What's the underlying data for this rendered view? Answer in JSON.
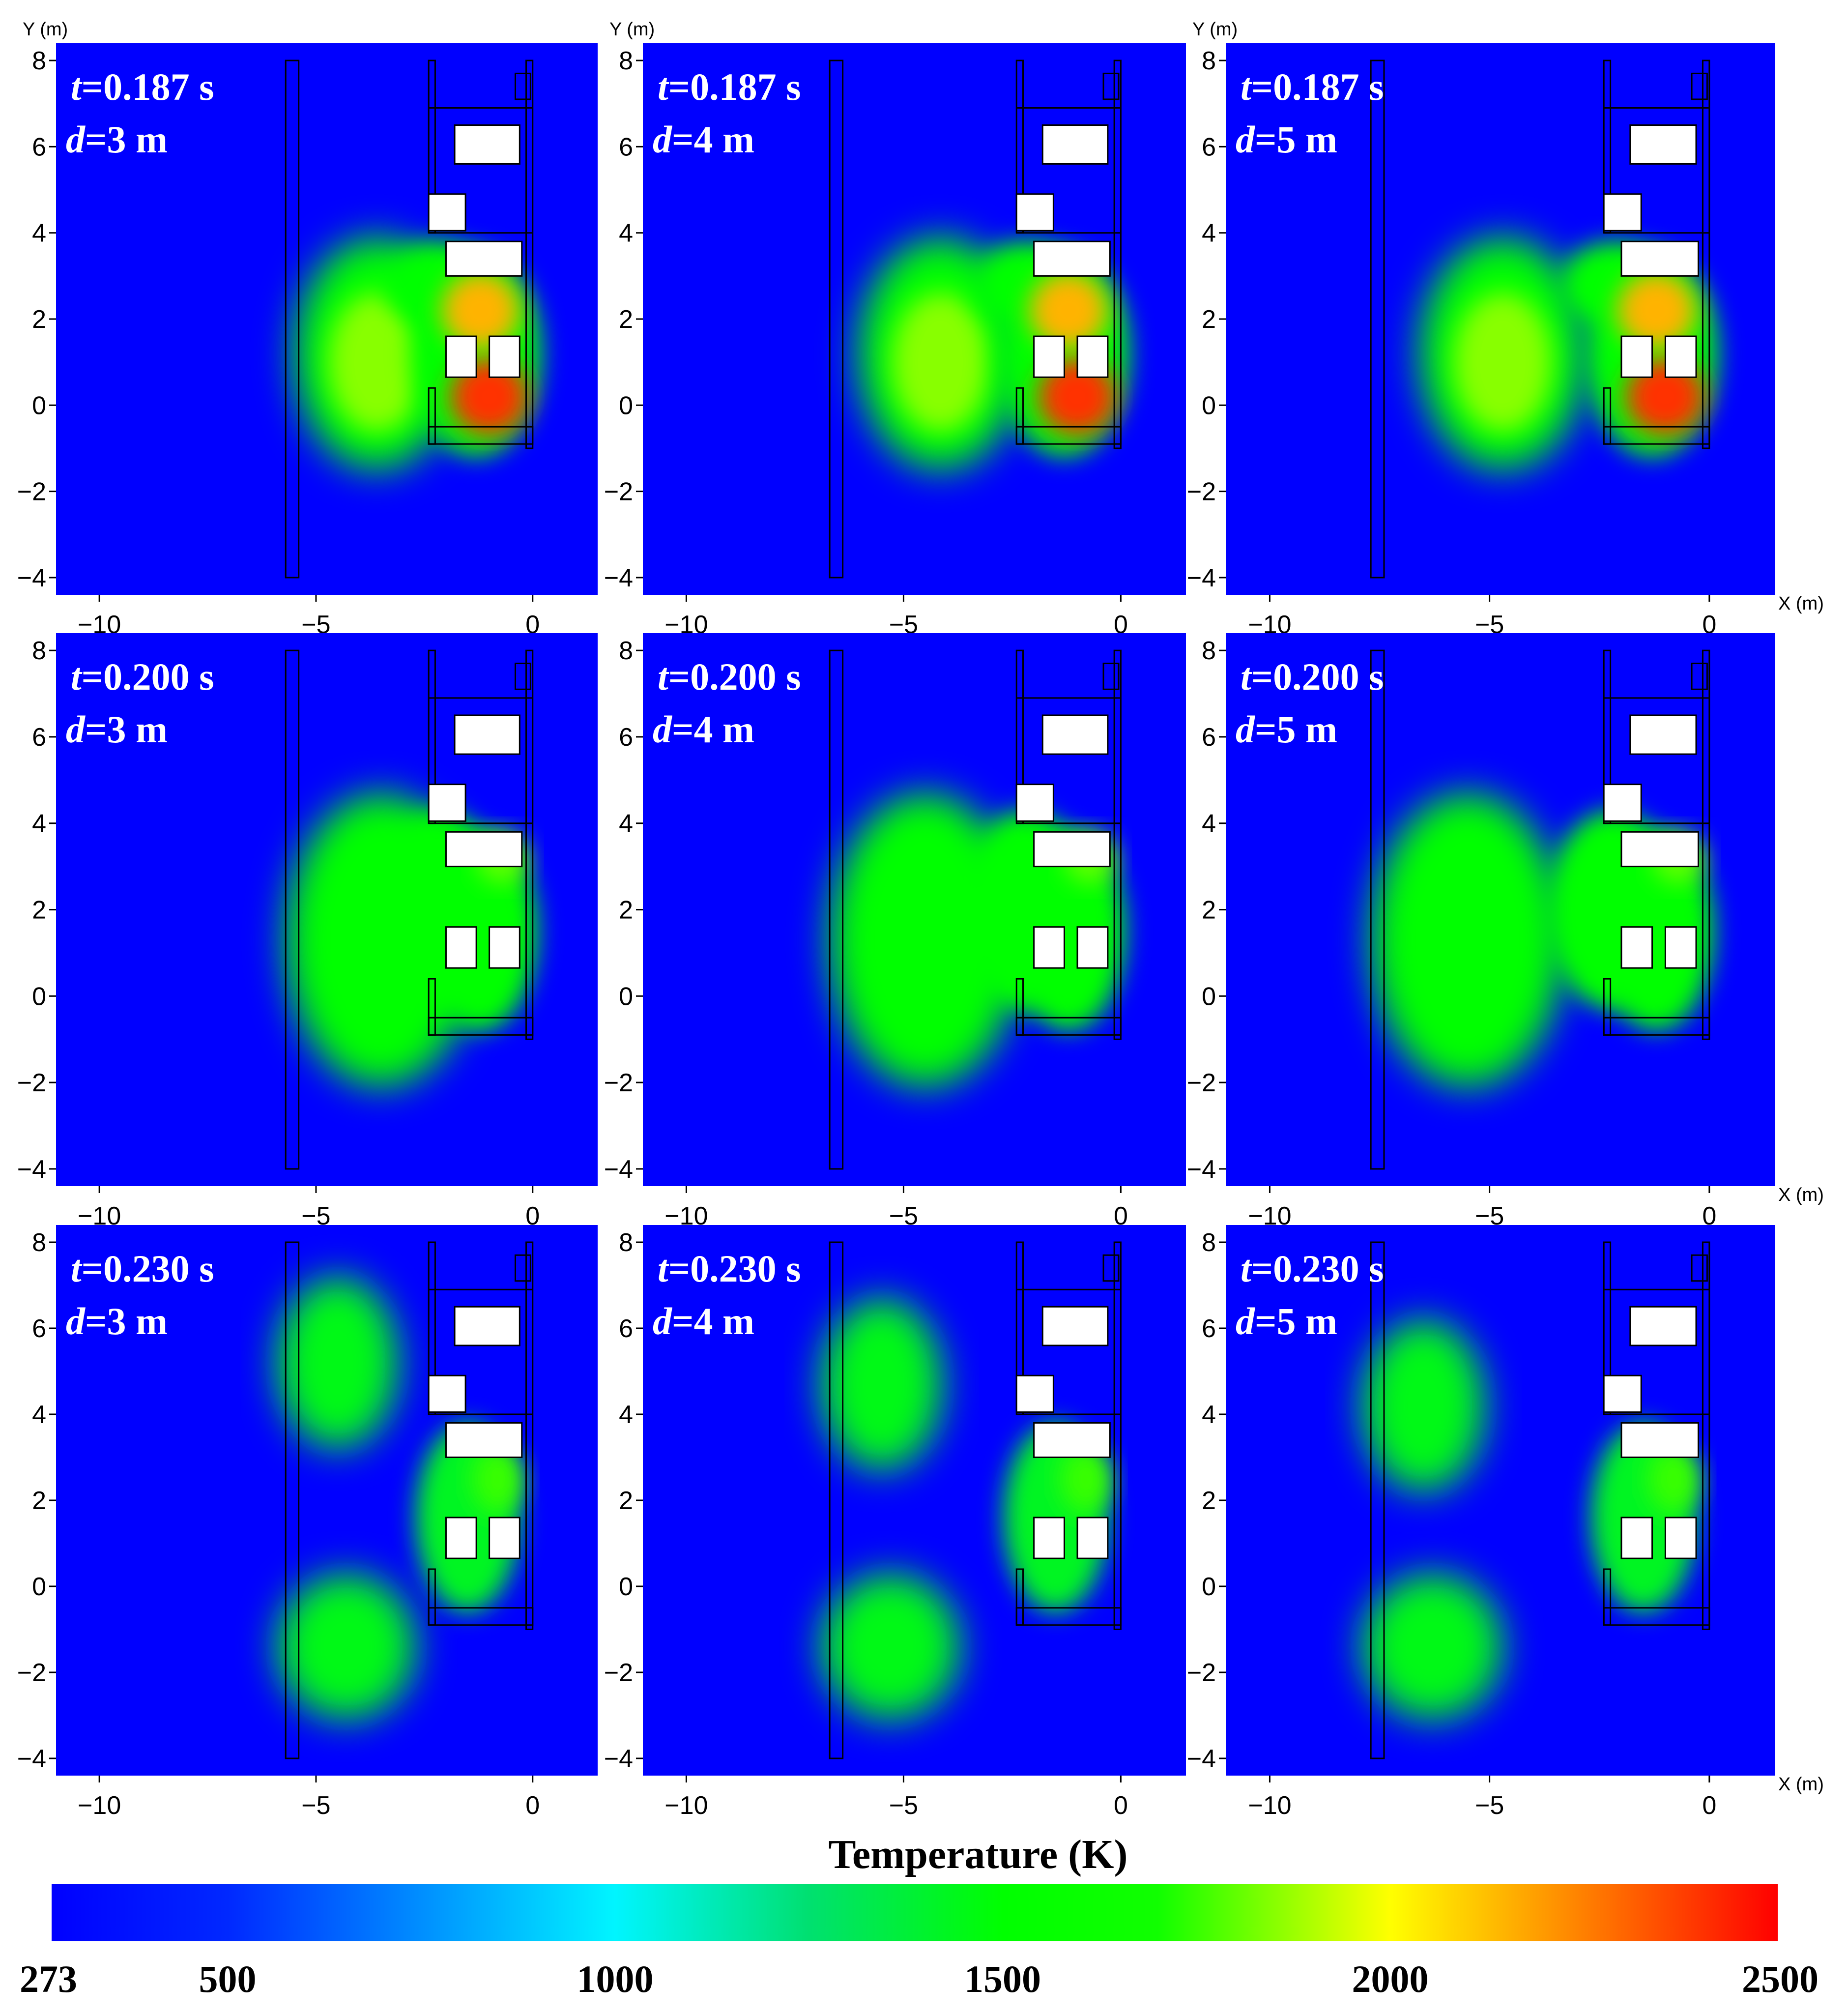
{
  "chart_data": {
    "type": "heatmap",
    "colorbar": {
      "title": "Temperature (K)",
      "range": [
        273,
        2500
      ],
      "tick_labels": [
        "273",
        "500",
        "1000",
        "1500",
        "2000",
        "2500"
      ],
      "tick_values": [
        273,
        500,
        1000,
        1500,
        2000,
        2500
      ],
      "stops": [
        {
          "value": 273,
          "color": "#0000ff"
        },
        {
          "value": 500,
          "color": "#0028ff"
        },
        {
          "value": 1000,
          "color": "#00f5ff"
        },
        {
          "value": 1250,
          "color": "#00e070"
        },
        {
          "value": 1500,
          "color": "#00ff00"
        },
        {
          "value": 1700,
          "color": "#10ff00"
        },
        {
          "value": 2000,
          "color": "#ffff00"
        },
        {
          "value": 2200,
          "color": "#ff9900"
        },
        {
          "value": 2500,
          "color": "#ff0000"
        }
      ]
    },
    "background_color": "#0000ff",
    "axes": {
      "xlim": [
        -11,
        1.5
      ],
      "ylim": [
        -4.4,
        8.4
      ],
      "x_ticks": [
        -10,
        -5,
        0
      ],
      "y_ticks": [
        -4,
        -2,
        0,
        2,
        4,
        6,
        8
      ],
      "x_tick_labels": [
        "−10",
        "−5",
        "0"
      ],
      "y_tick_labels": [
        "−4",
        "−2",
        "0",
        "2",
        "4",
        "6",
        "8"
      ],
      "xlabel": "X (m)",
      "ylabel": "Y (m)"
    },
    "panels": [
      {
        "t_label": "t",
        "t_value": "=0.187 s",
        "d_label": "d",
        "d_value": "=3 m",
        "time_s": 0.187,
        "distance_m": 3,
        "row": 0,
        "col": 0,
        "show_ylabel": true,
        "show_xlabel": false
      },
      {
        "t_label": "t",
        "t_value": "=0.187 s",
        "d_label": "d",
        "d_value": "=4 m",
        "time_s": 0.187,
        "distance_m": 4,
        "row": 0,
        "col": 1,
        "show_ylabel": true,
        "show_xlabel": false
      },
      {
        "t_label": "t",
        "t_value": "=0.187 s",
        "d_label": "d",
        "d_value": "=5 m",
        "time_s": 0.187,
        "distance_m": 5,
        "row": 0,
        "col": 2,
        "show_ylabel": true,
        "show_xlabel": true
      },
      {
        "t_label": "t",
        "t_value": "=0.200 s",
        "d_label": "d",
        "d_value": "=3 m",
        "time_s": 0.2,
        "distance_m": 3,
        "row": 1,
        "col": 0,
        "show_ylabel": false,
        "show_xlabel": false
      },
      {
        "t_label": "t",
        "t_value": "=0.200 s",
        "d_label": "d",
        "d_value": "=4 m",
        "time_s": 0.2,
        "distance_m": 4,
        "row": 1,
        "col": 1,
        "show_ylabel": false,
        "show_xlabel": false
      },
      {
        "t_label": "t",
        "t_value": "=0.200 s",
        "d_label": "d",
        "d_value": "=5 m",
        "time_s": 0.2,
        "distance_m": 5,
        "row": 1,
        "col": 2,
        "show_ylabel": false,
        "show_xlabel": true
      },
      {
        "t_label": "t",
        "t_value": "=0.230 s",
        "d_label": "d",
        "d_value": "=3 m",
        "time_s": 0.23,
        "distance_m": 3,
        "row": 2,
        "col": 0,
        "show_ylabel": false,
        "show_xlabel": false
      },
      {
        "t_label": "t",
        "t_value": "=0.230 s",
        "d_label": "d",
        "d_value": "=4 m",
        "time_s": 0.23,
        "distance_m": 4,
        "row": 2,
        "col": 1,
        "show_ylabel": false,
        "show_xlabel": false
      },
      {
        "t_label": "t",
        "t_value": "=0.230 s",
        "d_label": "d",
        "d_value": "=5 m",
        "time_s": 0.23,
        "distance_m": 5,
        "row": 2,
        "col": 2,
        "show_ylabel": false,
        "show_xlabel": true
      }
    ]
  }
}
